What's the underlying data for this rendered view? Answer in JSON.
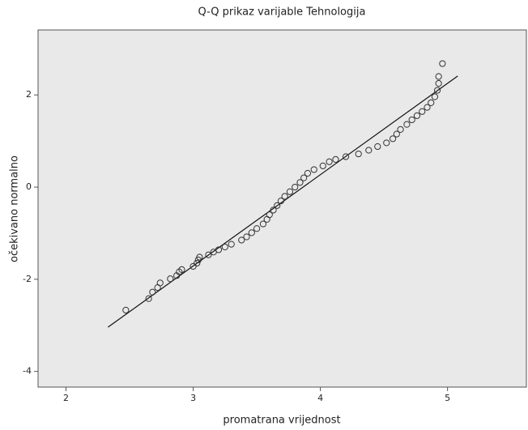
{
  "chart_data": {
    "type": "scatter",
    "title": "Q-Q prikaz varijable Tehnologija",
    "xlabel": "promatrana vrijednost",
    "ylabel": "očekivano normalno",
    "x": [
      2.47,
      2.65,
      2.68,
      2.72,
      2.74,
      2.82,
      2.87,
      2.89,
      2.91,
      3.0,
      3.03,
      3.04,
      3.05,
      3.12,
      3.16,
      3.2,
      3.25,
      3.3,
      3.38,
      3.42,
      3.46,
      3.5,
      3.55,
      3.58,
      3.6,
      3.63,
      3.66,
      3.69,
      3.72,
      3.76,
      3.8,
      3.84,
      3.87,
      3.9,
      3.95,
      4.02,
      4.07,
      4.12,
      4.2,
      4.3,
      4.38,
      4.45,
      4.52,
      4.57,
      4.6,
      4.63,
      4.68,
      4.72,
      4.76,
      4.8,
      4.84,
      4.87,
      4.9,
      4.92,
      4.93,
      4.93,
      4.96
    ],
    "values": [
      -2.67,
      -2.42,
      -2.28,
      -2.18,
      -2.08,
      -1.99,
      -1.92,
      -1.84,
      -1.79,
      -1.72,
      -1.65,
      -1.58,
      -1.52,
      -1.47,
      -1.41,
      -1.36,
      -1.3,
      -1.24,
      -1.15,
      -1.08,
      -0.99,
      -0.9,
      -0.8,
      -0.7,
      -0.6,
      -0.5,
      -0.4,
      -0.3,
      -0.2,
      -0.1,
      0.0,
      0.1,
      0.2,
      0.3,
      0.38,
      0.46,
      0.55,
      0.6,
      0.66,
      0.72,
      0.8,
      0.88,
      0.96,
      1.05,
      1.15,
      1.25,
      1.36,
      1.46,
      1.55,
      1.64,
      1.73,
      1.83,
      1.96,
      2.1,
      2.25,
      2.4,
      2.68
    ],
    "color": "#333333",
    "reference_line": {
      "x": [
        2.33,
        5.08
      ],
      "y": [
        -3.04,
        2.41
      ]
    },
    "xlim": [
      1.78,
      5.62
    ],
    "ylim": [
      -4.34,
      3.41
    ],
    "xticks": [
      2,
      3,
      4,
      5
    ],
    "yticks": [
      -4,
      -2,
      0,
      2
    ]
  }
}
